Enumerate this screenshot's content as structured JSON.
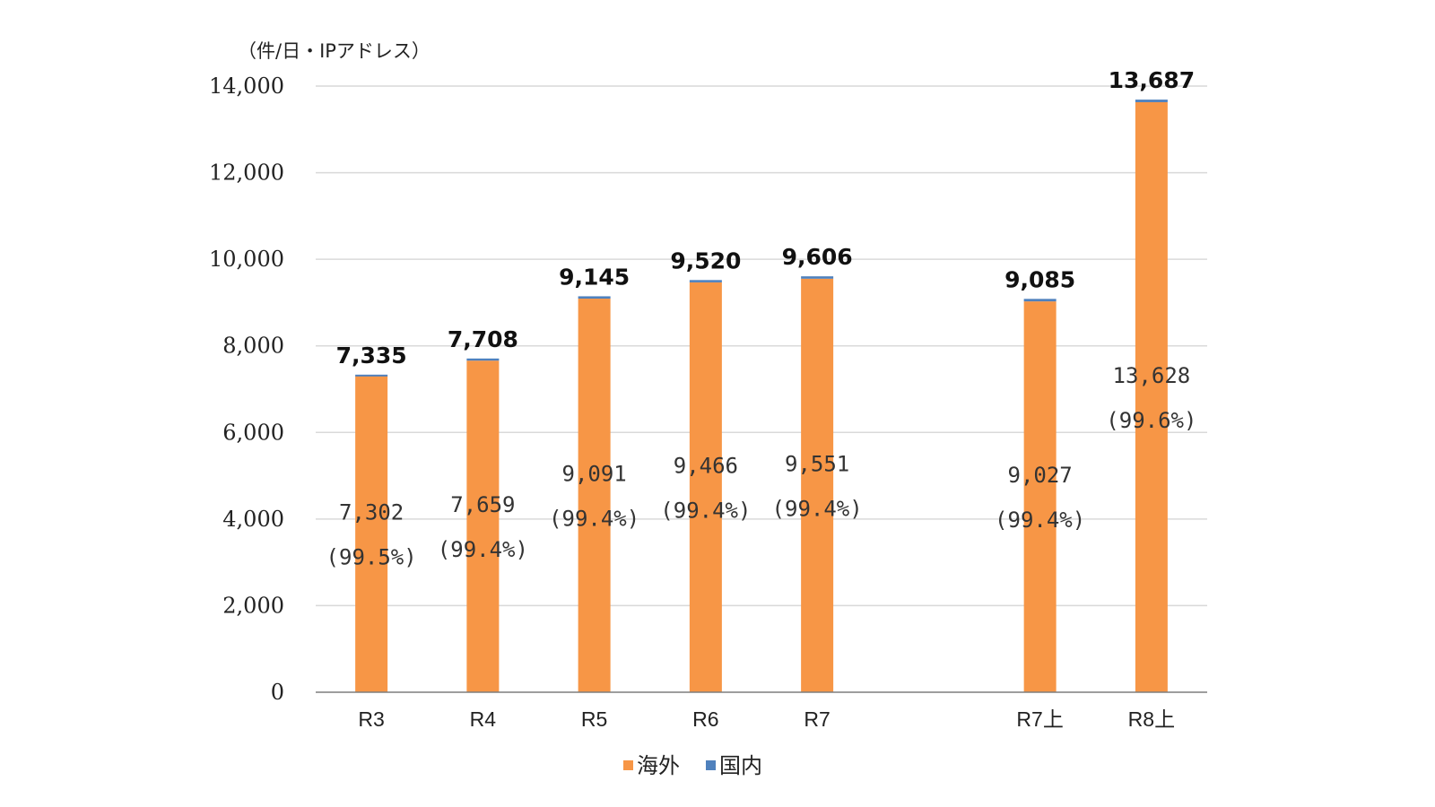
{
  "chart_data": {
    "type": "bar",
    "stacked": true,
    "unit_label": "（件/日・IPアドレス）",
    "categories": [
      "R3",
      "R4",
      "R5",
      "R6",
      "R7",
      "",
      "R7上",
      "R8上"
    ],
    "series": [
      {
        "name": "海外",
        "color": "#F79646",
        "values": [
          7302,
          7659,
          9091,
          9466,
          9551,
          null,
          9027,
          13628
        ]
      },
      {
        "name": "国内",
        "color": "#4F81BD",
        "values": [
          33,
          49,
          54,
          54,
          55,
          null,
          58,
          59
        ]
      }
    ],
    "totals": [
      "7,335",
      "7,708",
      "9,145",
      "9,520",
      "9,606",
      "",
      "9,085",
      "13,687"
    ],
    "inner_labels": [
      "7,302",
      "7,659",
      "9,091",
      "9,466",
      "9,551",
      "",
      "9,027",
      "13,628"
    ],
    "inner_percent": [
      "(99.5%)",
      "(99.4%)",
      "(99.4%)",
      "(99.4%)",
      "(99.4%)",
      "",
      "(99.4%)",
      "(99.6%)"
    ],
    "y_ticks": [
      "0",
      "2,000",
      "4,000",
      "6,000",
      "8,000",
      "10,000",
      "12,000",
      "14,000"
    ],
    "ylim": [
      0,
      14000
    ],
    "grid": true,
    "legend_position": "bottom"
  }
}
